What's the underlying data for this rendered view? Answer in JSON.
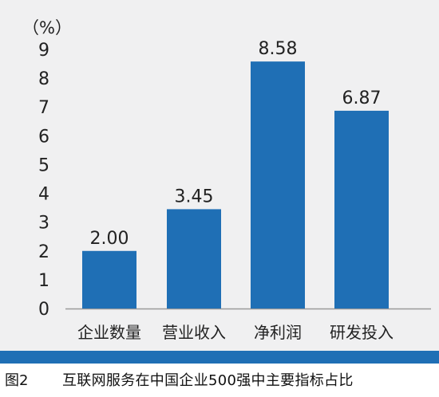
{
  "chart_data": {
    "type": "bar",
    "title": "",
    "ylabel": "（%）",
    "xlabel": "",
    "categories": [
      "企业数量",
      "营业收入",
      "净利润",
      "研发投入"
    ],
    "values": [
      2.0,
      3.45,
      8.58,
      6.87
    ],
    "value_labels": [
      "2.00",
      "3.45",
      "8.58",
      "6.87"
    ],
    "ylim": [
      0,
      9
    ],
    "yticks": [
      0,
      1,
      2,
      3,
      4,
      5,
      6,
      7,
      8,
      9
    ],
    "grid": false,
    "bar_color": "#1f6fb5",
    "background_color": "#f0f0f1"
  },
  "caption": {
    "label": "图2",
    "text": "互联网服务在中国企业500强中主要指标占比"
  }
}
